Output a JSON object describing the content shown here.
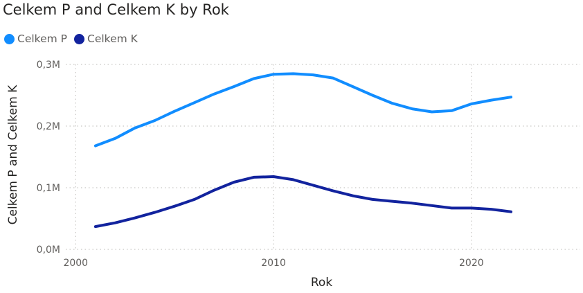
{
  "chart_data": {
    "type": "line",
    "title": "Celkem P and Celkem K by Rok",
    "xlabel": "Rok",
    "ylabel": "Celkem P and Celkem K",
    "xlim": [
      1999.5,
      2025.5
    ],
    "ylim": [
      0,
      300000
    ],
    "x_ticks": [
      2000,
      2010,
      2020
    ],
    "x_tick_labels": [
      "2000",
      "2010",
      "2020"
    ],
    "y_ticks": [
      0,
      100000,
      200000,
      300000
    ],
    "y_tick_labels": [
      "0,0M",
      "0,1M",
      "0,2M",
      "0,3M"
    ],
    "grid": true,
    "legend_position": "top-left",
    "x": [
      2001,
      2002,
      2003,
      2004,
      2005,
      2006,
      2007,
      2008,
      2009,
      2010,
      2011,
      2012,
      2013,
      2014,
      2015,
      2016,
      2017,
      2018,
      2019,
      2020,
      2021,
      2022
    ],
    "series": [
      {
        "name": "Celkem P",
        "color": "#118dff",
        "values": [
          168000,
          180000,
          197000,
          209000,
          224000,
          238000,
          252000,
          264000,
          277000,
          284000,
          285000,
          283000,
          278000,
          264000,
          250000,
          237000,
          228000,
          223000,
          225000,
          236000,
          242000,
          247000
        ]
      },
      {
        "name": "Celkem K",
        "color": "#12239e",
        "values": [
          37000,
          43000,
          51000,
          60000,
          70000,
          81000,
          96000,
          109000,
          117000,
          118000,
          113000,
          104000,
          95000,
          87000,
          81000,
          78000,
          75000,
          71000,
          67000,
          67000,
          65000,
          61000
        ]
      }
    ]
  }
}
